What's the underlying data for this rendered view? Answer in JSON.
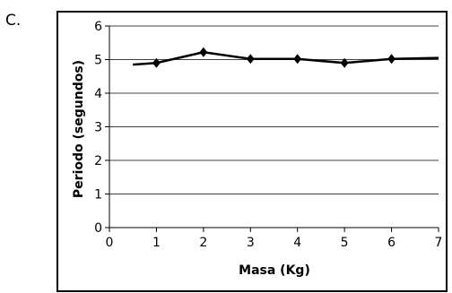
{
  "question_label": "C.",
  "chart_data": {
    "type": "line",
    "xlabel": "Masa (Kg)",
    "ylabel": "Periodo (segundos)",
    "xlim": [
      0,
      7
    ],
    "ylim": [
      0,
      6
    ],
    "x_ticks": [
      "0",
      "1",
      "2",
      "3",
      "4",
      "5",
      "6",
      "7"
    ],
    "y_ticks": [
      "0",
      "1",
      "2",
      "3",
      "4",
      "5",
      "6"
    ],
    "grid": "horizontal",
    "legend": "none",
    "series": [
      {
        "x": [
          0.5,
          1,
          2,
          3,
          4,
          5,
          6,
          7
        ],
        "y": [
          4.85,
          4.9,
          5.22,
          5.02,
          5.02,
          4.9,
          5.02,
          5.05
        ]
      }
    ],
    "markers": [
      {
        "x": 1,
        "y": 4.9
      },
      {
        "x": 2,
        "y": 5.22
      },
      {
        "x": 3,
        "y": 5.02
      },
      {
        "x": 4,
        "y": 5.02
      },
      {
        "x": 5,
        "y": 4.9
      },
      {
        "x": 6,
        "y": 5.02
      }
    ]
  }
}
